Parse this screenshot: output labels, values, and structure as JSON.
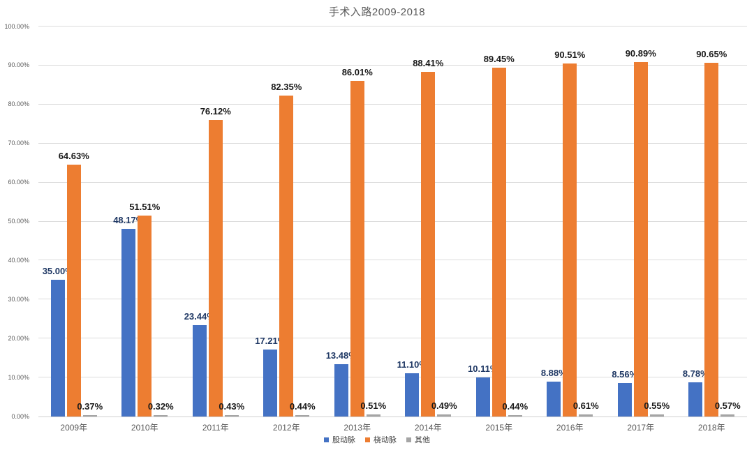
{
  "chart_data": {
    "type": "bar",
    "title": "手术入路2009-2018",
    "categories": [
      "2009年",
      "2010年",
      "2011年",
      "2012年",
      "2013年",
      "2014年",
      "2015年",
      "2016年",
      "2017年",
      "2018年"
    ],
    "series": [
      {
        "id": "femoral-artery",
        "name": "股动脉",
        "color": "#4472C4",
        "label_color": "#1F3864",
        "values": [
          35.0,
          48.17,
          23.44,
          17.21,
          13.48,
          11.1,
          10.11,
          8.88,
          8.56,
          8.78
        ],
        "labels": [
          "35.00%",
          "48.17%",
          "23.44%",
          "17.21%",
          "13.48%",
          "11.10%",
          "10.11%",
          "8.88%",
          "8.56%",
          "8.78%"
        ]
      },
      {
        "id": "radial-artery",
        "name": "桡动脉",
        "color": "#ED7D31",
        "label_color": "#1A1A1A",
        "values": [
          64.63,
          51.51,
          76.12,
          82.35,
          86.01,
          88.41,
          89.45,
          90.51,
          90.89,
          90.65
        ],
        "labels": [
          "64.63%",
          "51.51%",
          "76.12%",
          "82.35%",
          "86.01%",
          "88.41%",
          "89.45%",
          "90.51%",
          "90.89%",
          "90.65%"
        ]
      },
      {
        "id": "other",
        "name": "其他",
        "color": "#A5A5A5",
        "label_color": "#1A1A1A",
        "values": [
          0.37,
          0.32,
          0.43,
          0.44,
          0.51,
          0.49,
          0.44,
          0.61,
          0.55,
          0.57
        ],
        "labels": [
          "0.37%",
          "0.32%",
          "0.43%",
          "0.44%",
          "0.51%",
          "0.49%",
          "0.44%",
          "0.61%",
          "0.55%",
          "0.57%"
        ]
      }
    ],
    "ylim": [
      0,
      100
    ],
    "y_ticks": [
      "0.00%",
      "10.00%",
      "20.00%",
      "30.00%",
      "40.00%",
      "50.00%",
      "60.00%",
      "70.00%",
      "80.00%",
      "90.00%",
      "100.00%"
    ],
    "grid": true,
    "legend_position": "bottom"
  },
  "colors": {
    "grid": "#DCDCDC",
    "axis_text": "#595959",
    "title_text": "#595959",
    "background": "#FFFFFF"
  }
}
